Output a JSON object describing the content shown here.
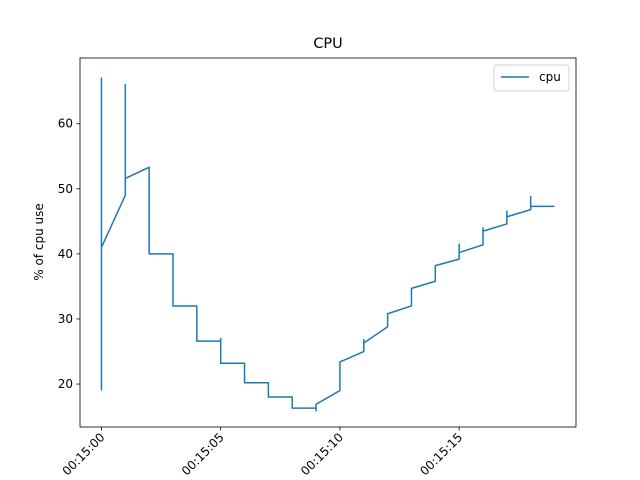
{
  "chart_data": {
    "type": "line",
    "title": "CPU",
    "xlabel": "",
    "ylabel": "% of cpu use",
    "x_is_time": true,
    "xlim": [
      "00:14:59.1",
      "00:15:19.9"
    ],
    "ylim": [
      13.4,
      70.1
    ],
    "xticks": [
      "00:15:00",
      "00:15:05",
      "00:15:10",
      "00:15:15"
    ],
    "yticks": [
      20,
      30,
      40,
      50,
      60
    ],
    "grid": false,
    "legend": {
      "position": "top-right",
      "entries": [
        "cpu"
      ]
    },
    "colors": {
      "line": "#1f77b4",
      "axes": "#000000",
      "legend_border": "#cccccc"
    },
    "series": [
      {
        "name": "cpu",
        "points": [
          [
            "00:15:00.0",
            19.0
          ],
          [
            "00:15:00.0",
            67.0
          ],
          [
            "00:15:00.0",
            66.5
          ],
          [
            "00:15:00.0",
            41.0
          ],
          [
            "00:15:01.0",
            49.0
          ],
          [
            "00:15:01.0",
            66.0
          ],
          [
            "00:15:01.0",
            51.6
          ],
          [
            "00:15:02.0",
            53.3
          ],
          [
            "00:15:02.0",
            40.0
          ],
          [
            "00:15:03.0",
            40.0
          ],
          [
            "00:15:03.0",
            32.0
          ],
          [
            "00:15:04.0",
            32.0
          ],
          [
            "00:15:04.0",
            26.6
          ],
          [
            "00:15:05.0",
            26.6
          ],
          [
            "00:15:05.0",
            27.0
          ],
          [
            "00:15:05.0",
            23.2
          ],
          [
            "00:15:06.0",
            23.2
          ],
          [
            "00:15:06.0",
            20.2
          ],
          [
            "00:15:07.0",
            20.2
          ],
          [
            "00:15:07.0",
            18.0
          ],
          [
            "00:15:08.0",
            18.0
          ],
          [
            "00:15:08.0",
            16.3
          ],
          [
            "00:15:09.0",
            16.3
          ],
          [
            "00:15:09.0",
            15.9
          ],
          [
            "00:15:09.0",
            16.9
          ],
          [
            "00:15:10.0",
            19.0
          ],
          [
            "00:15:10.0",
            22.0
          ],
          [
            "00:15:10.0",
            23.4
          ],
          [
            "00:15:11.0",
            25.0
          ],
          [
            "00:15:11.0",
            26.8
          ],
          [
            "00:15:11.0",
            26.3
          ],
          [
            "00:15:12.0",
            28.8
          ],
          [
            "00:15:12.0",
            30.8
          ],
          [
            "00:15:13.0",
            32.0
          ],
          [
            "00:15:13.0",
            34.7
          ],
          [
            "00:15:14.0",
            35.8
          ],
          [
            "00:15:14.0",
            38.2
          ],
          [
            "00:15:15.0",
            39.2
          ],
          [
            "00:15:15.0",
            41.5
          ],
          [
            "00:15:15.0",
            40.2
          ],
          [
            "00:15:16.0",
            41.4
          ],
          [
            "00:15:16.0",
            44.0
          ],
          [
            "00:15:16.0",
            43.5
          ],
          [
            "00:15:17.0",
            44.6
          ],
          [
            "00:15:17.0",
            46.6
          ],
          [
            "00:15:17.0",
            45.7
          ],
          [
            "00:15:18.0",
            46.8
          ],
          [
            "00:15:18.0",
            48.8
          ],
          [
            "00:15:18.0",
            47.3
          ],
          [
            "00:15:19.0",
            47.3
          ]
        ]
      }
    ]
  }
}
